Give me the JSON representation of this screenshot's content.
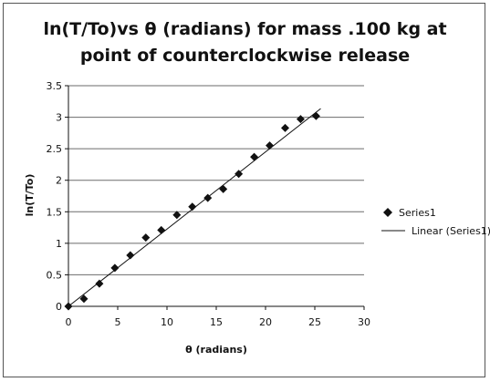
{
  "chart_data": {
    "type": "scatter",
    "title_line1": "ln(T/To)vs θ (radians) for mass .100 kg at",
    "title_line2": "point of counterclockwise release",
    "xlabel": "θ (radians)",
    "ylabel": "ln(T/To)",
    "xlim": [
      0,
      30
    ],
    "ylim": [
      0,
      3.5
    ],
    "x_ticks": [
      "0",
      "5",
      "10",
      "15",
      "20",
      "25",
      "30"
    ],
    "y_ticks": [
      "0",
      "0.5",
      "1",
      "1.5",
      "2",
      "2.5",
      "3",
      "3.5"
    ],
    "grid": "horizontal",
    "legend_position": "right",
    "series": [
      {
        "name": "Series1",
        "marker": "diamond",
        "x": [
          0,
          1.57,
          3.14,
          4.71,
          6.28,
          7.85,
          9.42,
          11.0,
          12.57,
          14.14,
          15.71,
          17.28,
          18.85,
          20.42,
          21.99,
          23.56,
          25.13
        ],
        "y": [
          0.0,
          0.12,
          0.36,
          0.61,
          0.81,
          1.09,
          1.21,
          1.45,
          1.58,
          1.72,
          1.86,
          2.1,
          2.37,
          2.55,
          2.83,
          2.97,
          3.02
        ]
      }
    ],
    "trendline": {
      "name": "Linear (Series1)",
      "type": "linear",
      "slope": 0.1225,
      "intercept": 0.0,
      "x_range": [
        0,
        25.6
      ]
    },
    "colors": {
      "marker": "#111111",
      "trendline": "#111111",
      "grid": "#6b6b6b"
    }
  }
}
